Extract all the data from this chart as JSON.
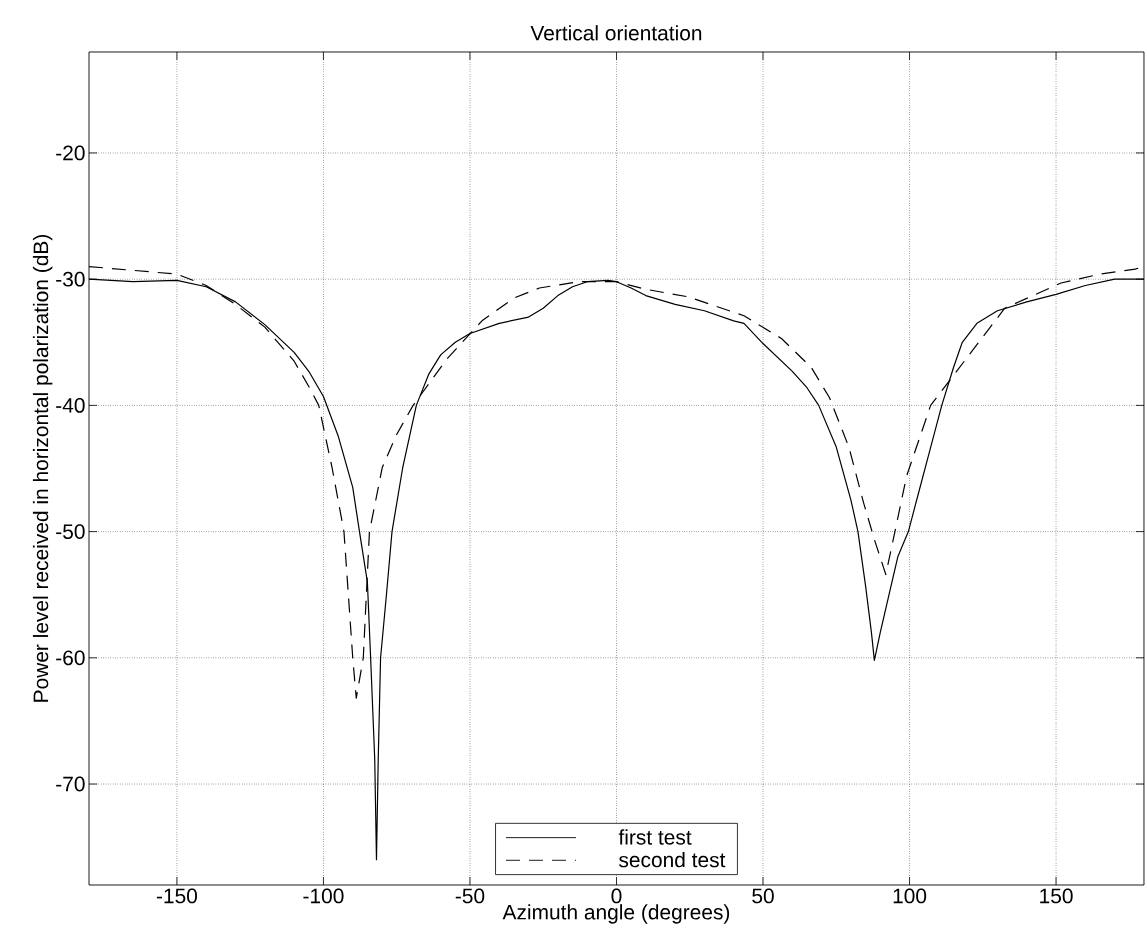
{
  "chart_data": {
    "type": "line",
    "title": "Vertical orientation",
    "xlabel": "Azimuth angle (degrees)",
    "ylabel": "Power level received in horizontal polarization (dB)",
    "xlim": [
      -180,
      180
    ],
    "ylim": [
      -78,
      -12
    ],
    "xticks": [
      -150,
      -100,
      -50,
      0,
      50,
      100,
      150
    ],
    "yticks": [
      -70,
      -60,
      -50,
      -40,
      -30,
      -20
    ],
    "grid": true,
    "legend": "bottom",
    "series": [
      {
        "name": "first test",
        "color": "#000000",
        "line_style": "solid",
        "x": [
          -180,
          -165,
          -150,
          -140,
          -130,
          -120,
          -110,
          -105,
          -100,
          -95,
          -90,
          -87.7,
          -85,
          -83.9,
          -82.5,
          -81.9,
          -81.3,
          -80.5,
          -78.5,
          -76.6,
          -73,
          -68.3,
          -64,
          -60,
          -55,
          -50,
          -40,
          -30,
          -25,
          -20,
          -15,
          -10,
          -3,
          0,
          5,
          10,
          20,
          30,
          40,
          43.5,
          50,
          60,
          65,
          69,
          75,
          80,
          82.4,
          85,
          87,
          88,
          90,
          93,
          96,
          99.6,
          103,
          107,
          111,
          115,
          118,
          123,
          130,
          140,
          150,
          160,
          170,
          180
        ],
        "values": [
          -30,
          -30.2,
          -30.1,
          -30.6,
          -31.8,
          -33.6,
          -35.8,
          -37.3,
          -39.3,
          -42.4,
          -46.5,
          -50,
          -54,
          -60,
          -68,
          -76,
          -68,
          -60,
          -55,
          -50,
          -45,
          -40,
          -37.5,
          -36,
          -35,
          -34.3,
          -33.5,
          -33,
          -32.3,
          -31.3,
          -30.6,
          -30.2,
          -30.1,
          -30.2,
          -30.7,
          -31.3,
          -32,
          -32.5,
          -33.3,
          -33.5,
          -35.1,
          -37.3,
          -38.6,
          -40,
          -43.3,
          -47.5,
          -50,
          -54.3,
          -58,
          -60.2,
          -58,
          -55,
          -52,
          -50,
          -47,
          -43.5,
          -40,
          -37,
          -35,
          -33.5,
          -32.5,
          -31.8,
          -31.2,
          -30.5,
          -30,
          -30
        ]
      },
      {
        "name": "second test",
        "color": "#000000",
        "line_style": "dashed",
        "x": [
          -180,
          -165,
          -150,
          -140,
          -130,
          -120,
          -110,
          -105,
          -101.6,
          -97,
          -93,
          -90,
          -88.8,
          -86.4,
          -84.3,
          -79.9,
          -75,
          -69.4,
          -57.8,
          -45.9,
          -35,
          -26.3,
          -13,
          0,
          10,
          24.5,
          43.5,
          56.3,
          66.5,
          72.7,
          79.3,
          84.3,
          88.1,
          91.9,
          95.2,
          99,
          107.2,
          120,
          132.5,
          151.7,
          165,
          177,
          180
        ],
        "values": [
          -29,
          -29.3,
          -29.6,
          -30.5,
          -32,
          -33.8,
          -36.5,
          -38.5,
          -40,
          -45,
          -50,
          -60,
          -63.2,
          -60,
          -50,
          -44.9,
          -42.3,
          -40,
          -36.3,
          -33.3,
          -31.5,
          -30.7,
          -30.2,
          -30.2,
          -30.8,
          -31.4,
          -32.9,
          -34.7,
          -37,
          -39.4,
          -43.3,
          -47.7,
          -50.7,
          -53.4,
          -49.8,
          -45.6,
          -40,
          -36.1,
          -32.3,
          -30.3,
          -29.6,
          -29.2,
          -29
        ]
      }
    ]
  }
}
